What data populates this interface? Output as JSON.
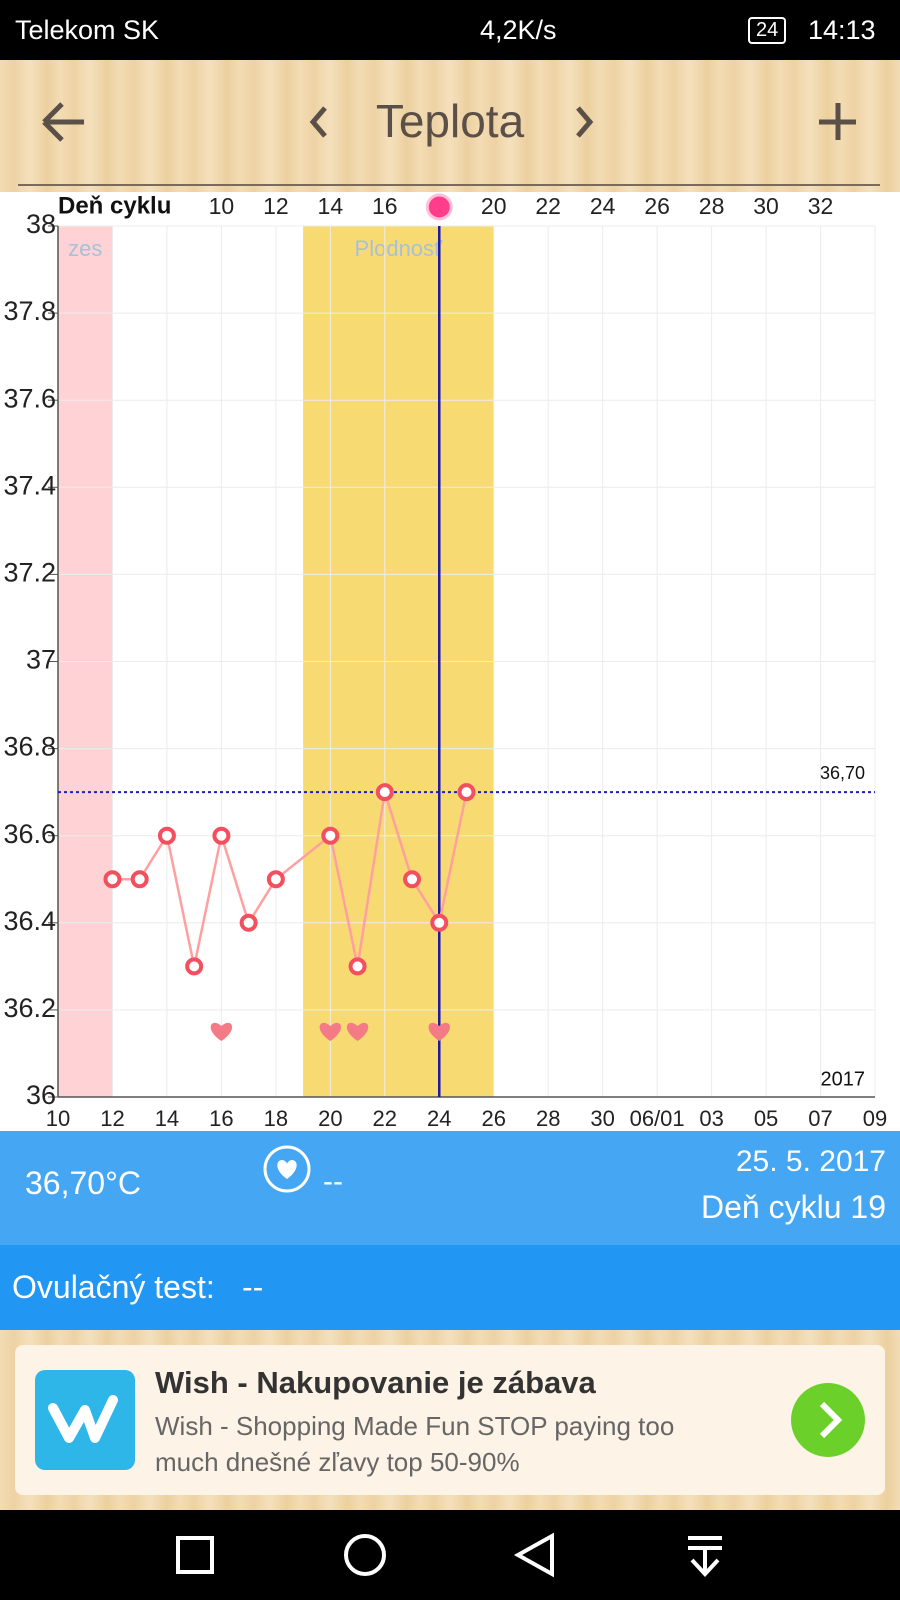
{
  "status_bar": {
    "carrier": "Telekom SK",
    "speed": "4,2K/s",
    "battery": "24",
    "time": "14:13"
  },
  "header": {
    "title": "Teplota"
  },
  "chart_data": {
    "type": "line",
    "x2_label": "Deň cyklu",
    "year_label": "2017",
    "categories": [
      "10",
      null,
      "12",
      null,
      "14",
      null,
      "16",
      null,
      "18",
      null,
      "20",
      null,
      "22",
      null,
      "24",
      null,
      "26",
      null,
      "28",
      null,
      "30",
      null,
      "06/01",
      null,
      "03",
      null,
      "05",
      null,
      "07",
      null,
      "09"
    ],
    "values": [
      null,
      null,
      36.5,
      36.5,
      36.6,
      36.3,
      36.6,
      36.4,
      36.5,
      null,
      36.6,
      36.3,
      36.7,
      36.5,
      36.4,
      36.7,
      null,
      null,
      null,
      null,
      null,
      null,
      null,
      null,
      null,
      null,
      null,
      null,
      null,
      null,
      null
    ],
    "color": "#ffa0a0",
    "marker_color": "#f2505f",
    "intercourse": [
      false,
      false,
      false,
      false,
      false,
      false,
      true,
      false,
      false,
      false,
      true,
      true,
      false,
      false,
      true,
      false,
      false,
      false,
      false,
      false,
      false,
      false,
      false,
      false,
      false,
      false,
      false,
      false,
      false,
      false,
      false
    ],
    "ylim": [
      36,
      38
    ],
    "yticks": [
      36,
      36.2,
      36.4,
      36.6,
      36.8,
      37,
      37.2,
      37.4,
      37.6,
      37.8,
      38
    ],
    "grid": true,
    "x2lim": [
      4,
      34
    ],
    "x2ticks": [
      10,
      12,
      14,
      16,
      20,
      22,
      24,
      26,
      28,
      30,
      32
    ],
    "ovulation_day": 18,
    "bands": [
      {
        "label": "zes",
        "from": 0,
        "to": 2,
        "color": "#ffd3d6"
      },
      {
        "label": "Plodnosť",
        "from": 9,
        "to": 16,
        "color": "#f8da72"
      }
    ],
    "reference_line": {
      "value": 36.7,
      "label": "36,70"
    },
    "selected_index": 14
  },
  "info": {
    "temperature": "36,70°C",
    "intercourse": "--",
    "date": "25. 5. 2017",
    "cycle_day": "Deň cyklu 19"
  },
  "ovulation_test": {
    "label": "Ovulačný test:",
    "value": "--"
  },
  "ad": {
    "title": "Wish - Nakupovanie je zábava",
    "text_lines": [
      "Wish - Shopping Made Fun STOP paying too",
      "much dnešné zľavy top 50-90%"
    ]
  }
}
